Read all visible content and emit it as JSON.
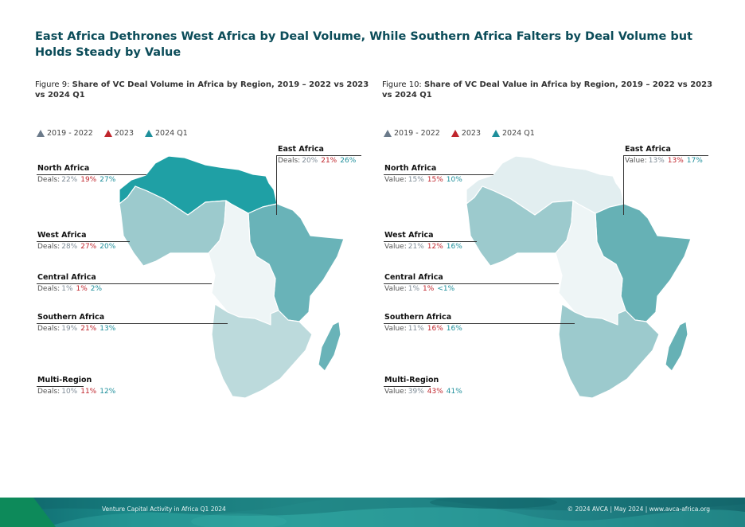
{
  "headline": "East Africa Dethrones West Africa by Deal Volume, While Southern Africa Falters by Deal Volume but Holds Steady by Value",
  "colors": {
    "title": "#0b4c59",
    "series_2019_2022": "#7f8c97",
    "series_2023": "#c0262d",
    "series_2024Q1": "#1e8f9b"
  },
  "legend": [
    {
      "label": "2019 - 2022",
      "color": "#6b7a8a"
    },
    {
      "label": "2023",
      "color": "#c0262d"
    },
    {
      "label": "2024 Q1",
      "color": "#1e8f9b"
    }
  ],
  "chart_data": [
    {
      "type": "choropleth-map",
      "figure_prefix": "Figure 9: ",
      "title": "Share of VC Deal Volume in Africa by Region, 2019 – 2022 vs 2023 vs 2024 Q1",
      "metric_prefix": "Deals:",
      "series": [
        "2019 - 2022",
        "2023",
        "2024 Q1"
      ],
      "regions": [
        {
          "name": "North Africa",
          "values": [
            "22%",
            "19%",
            "27%"
          ],
          "fill": "#1fa0a5"
        },
        {
          "name": "East Africa",
          "values": [
            "20%",
            "21%",
            "26%"
          ],
          "fill": "#69b3b8"
        },
        {
          "name": "West Africa",
          "values": [
            "28%",
            "27%",
            "20%"
          ],
          "fill": "#9ccacd"
        },
        {
          "name": "Central Africa",
          "values": [
            "1%",
            "1%",
            "2%"
          ],
          "fill": "#eef5f6"
        },
        {
          "name": "Southern Africa",
          "values": [
            "19%",
            "21%",
            "13%"
          ],
          "fill": "#bcdadc"
        },
        {
          "name": "Multi-Region",
          "values": [
            "10%",
            "11%",
            "12%"
          ],
          "fill": null
        }
      ]
    },
    {
      "type": "choropleth-map",
      "figure_prefix": "Figure 10: ",
      "title": "Share of VC Deal Value in Africa by Region, 2019 – 2022 vs 2023 vs 2024 Q1",
      "metric_prefix": "Value:",
      "series": [
        "2019 - 2022",
        "2023",
        "2024 Q1"
      ],
      "regions": [
        {
          "name": "North Africa",
          "values": [
            "15%",
            "15%",
            "10%"
          ],
          "fill": "#e2eef0"
        },
        {
          "name": "East Africa",
          "values": [
            "13%",
            "13%",
            "17%"
          ],
          "fill": "#66b1b5"
        },
        {
          "name": "West Africa",
          "values": [
            "21%",
            "12%",
            "16%"
          ],
          "fill": "#9ccacd"
        },
        {
          "name": "Central Africa",
          "values": [
            "1%",
            "1%",
            "<1%"
          ],
          "fill": "#eef5f6"
        },
        {
          "name": "Southern Africa",
          "values": [
            "11%",
            "16%",
            "16%"
          ],
          "fill": "#9ccacd"
        },
        {
          "name": "Multi-Region",
          "values": [
            "39%",
            "43%",
            "41%"
          ],
          "fill": null
        }
      ]
    }
  ],
  "footer": {
    "left": "Venture Capital Activity in Africa Q1 2024",
    "right": "© 2024 AVCA  |  May 2024  |  www.avca-africa.org"
  }
}
